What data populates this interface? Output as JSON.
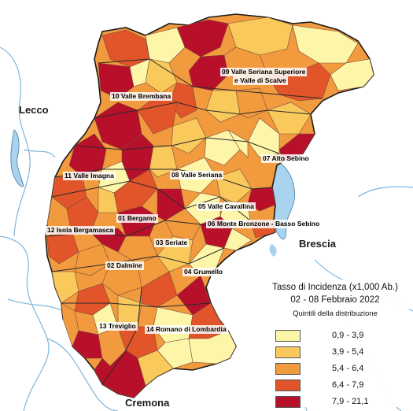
{
  "regions": {
    "lecco": "Lecco",
    "brescia": "Brescia",
    "cremona": "Cremona"
  },
  "districts": [
    {
      "id": "09",
      "label": "09 Valle Seriana Superiore"
    },
    {
      "id": "09b",
      "label": "e Valle di Scalve"
    },
    {
      "id": "10",
      "label": "10 Valle Brembana"
    },
    {
      "id": "07",
      "label": "07 Alto Sebino"
    },
    {
      "id": "08",
      "label": "08 Valle Seriana"
    },
    {
      "id": "11",
      "label": "11 Valle Imagna"
    },
    {
      "id": "05",
      "label": "05 Valle Cavallina"
    },
    {
      "id": "01",
      "label": "01 Bergamo"
    },
    {
      "id": "06",
      "label": "06 Monte Bronzone - Basso Sebino"
    },
    {
      "id": "12",
      "label": "12 Isola Bergamasca"
    },
    {
      "id": "03",
      "label": "03 Seriate"
    },
    {
      "id": "02",
      "label": "02 Dalmine"
    },
    {
      "id": "04",
      "label": "04 Grumello"
    },
    {
      "id": "13",
      "label": "13 Treviglio"
    },
    {
      "id": "14",
      "label": "14 Romano di Lombardia"
    }
  ],
  "legend": {
    "title": "Tasso di Incidenza (x1,000 Ab.)",
    "period": "02 - 08 Febbraio 2022",
    "subtitle": "Quintili della distribuzione",
    "classes": [
      {
        "range": "0,9 - 3,9",
        "color": "#fdf5a8"
      },
      {
        "range": "3,9 - 5,4",
        "color": "#f9c95c"
      },
      {
        "range": "5,4 - 6,4",
        "color": "#f29a3e"
      },
      {
        "range": "6,4 - 7,9",
        "color": "#e2542a"
      },
      {
        "range": "7,9 - 21,1",
        "color": "#b8102a"
      }
    ]
  },
  "colors": {
    "water": "#a9d3ee",
    "river": "#7fb6db",
    "outside": "#ffffff",
    "boundary": "#1a1a1a",
    "municipal_border": "#7a4a3a"
  }
}
